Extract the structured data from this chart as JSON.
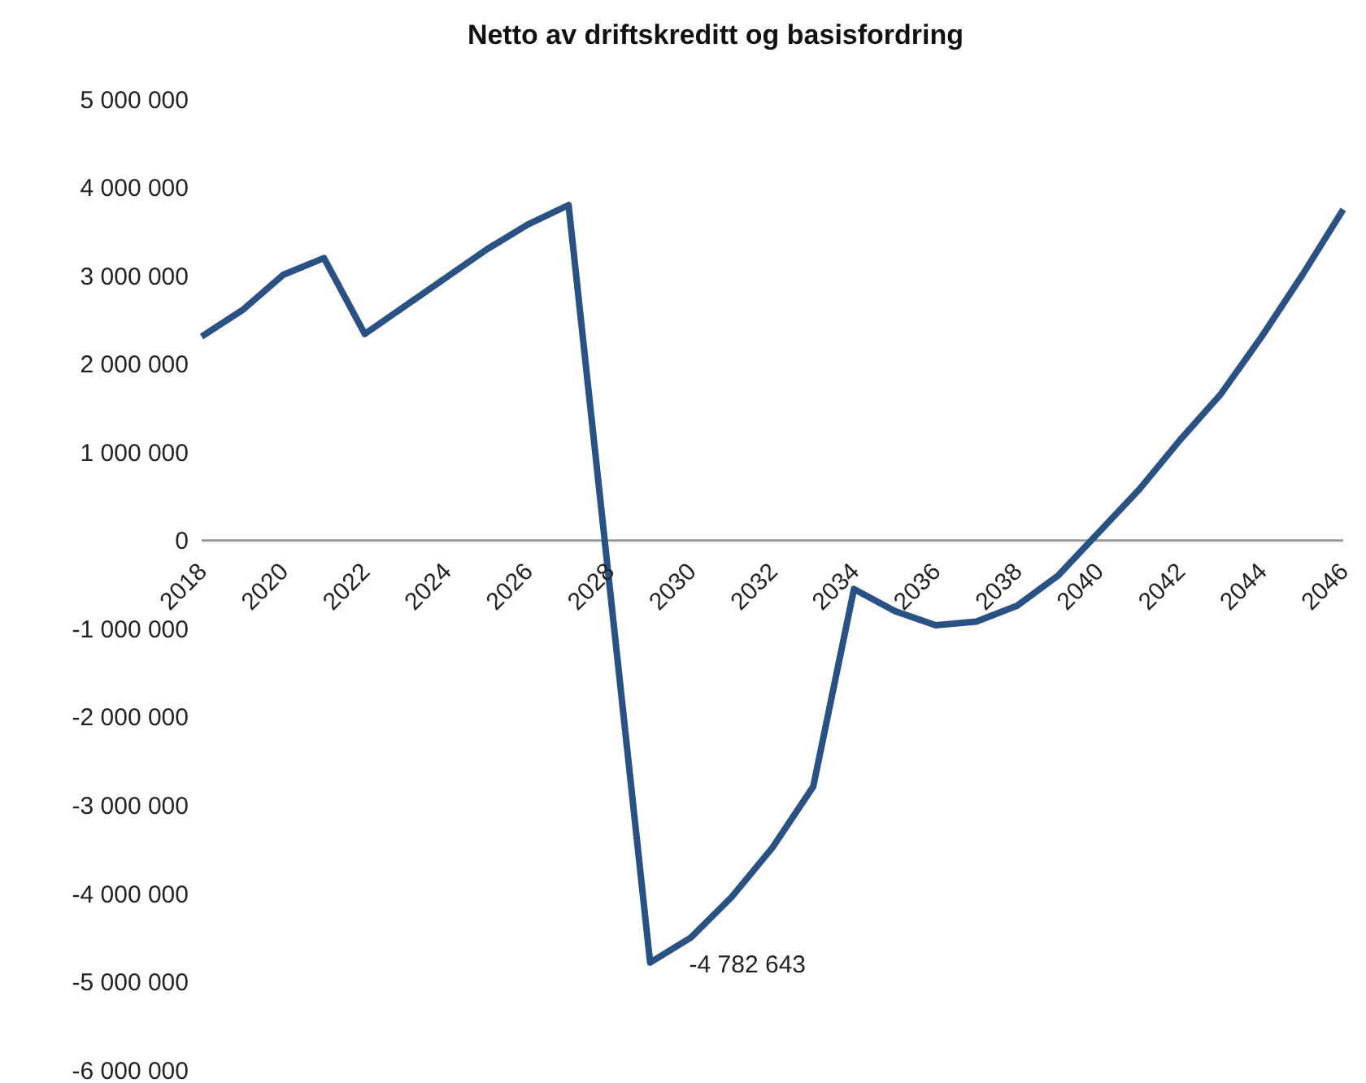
{
  "chart_data": {
    "type": "line",
    "title": "Netto av driftskreditt og basisfordring",
    "categories": [
      "2018",
      null,
      "2020",
      null,
      "2022",
      null,
      "2024",
      null,
      "2026",
      null,
      "2028",
      null,
      "2030",
      null,
      "2032",
      null,
      "2034",
      null,
      "2036",
      null,
      "2038",
      null,
      "2040",
      null,
      "2042",
      null,
      "2044",
      null,
      "2046"
    ],
    "series": [
      {
        "color": "#2a5183",
        "values": [
          2310000,
          2610000,
          3010000,
          3200000,
          2340000,
          2660000,
          2980000,
          3300000,
          3580000,
          3800000,
          -490000,
          -4782643,
          -4500000,
          -4040000,
          -3480000,
          -2790000,
          -550000,
          -800000,
          -960000,
          -920000,
          -740000,
          -400000,
          90000,
          580000,
          1140000,
          1660000,
          2310000,
          3010000,
          3750000
        ],
        "value_labels": [
          null,
          null,
          null,
          null,
          null,
          null,
          null,
          null,
          null,
          null,
          null,
          "-4 782 643",
          null,
          null,
          null,
          null,
          null,
          null,
          null,
          null,
          null,
          null,
          null,
          null,
          null,
          null,
          null,
          null,
          null
        ]
      }
    ],
    "ylim": [
      -6000000,
      5000000
    ],
    "yticks": [
      -6000000,
      -5000000,
      -4000000,
      -3000000,
      -2000000,
      -1000000,
      0,
      1000000,
      2000000,
      3000000,
      4000000,
      5000000
    ],
    "grid": false,
    "legend": false,
    "marker": "none",
    "line_style": "solid"
  }
}
